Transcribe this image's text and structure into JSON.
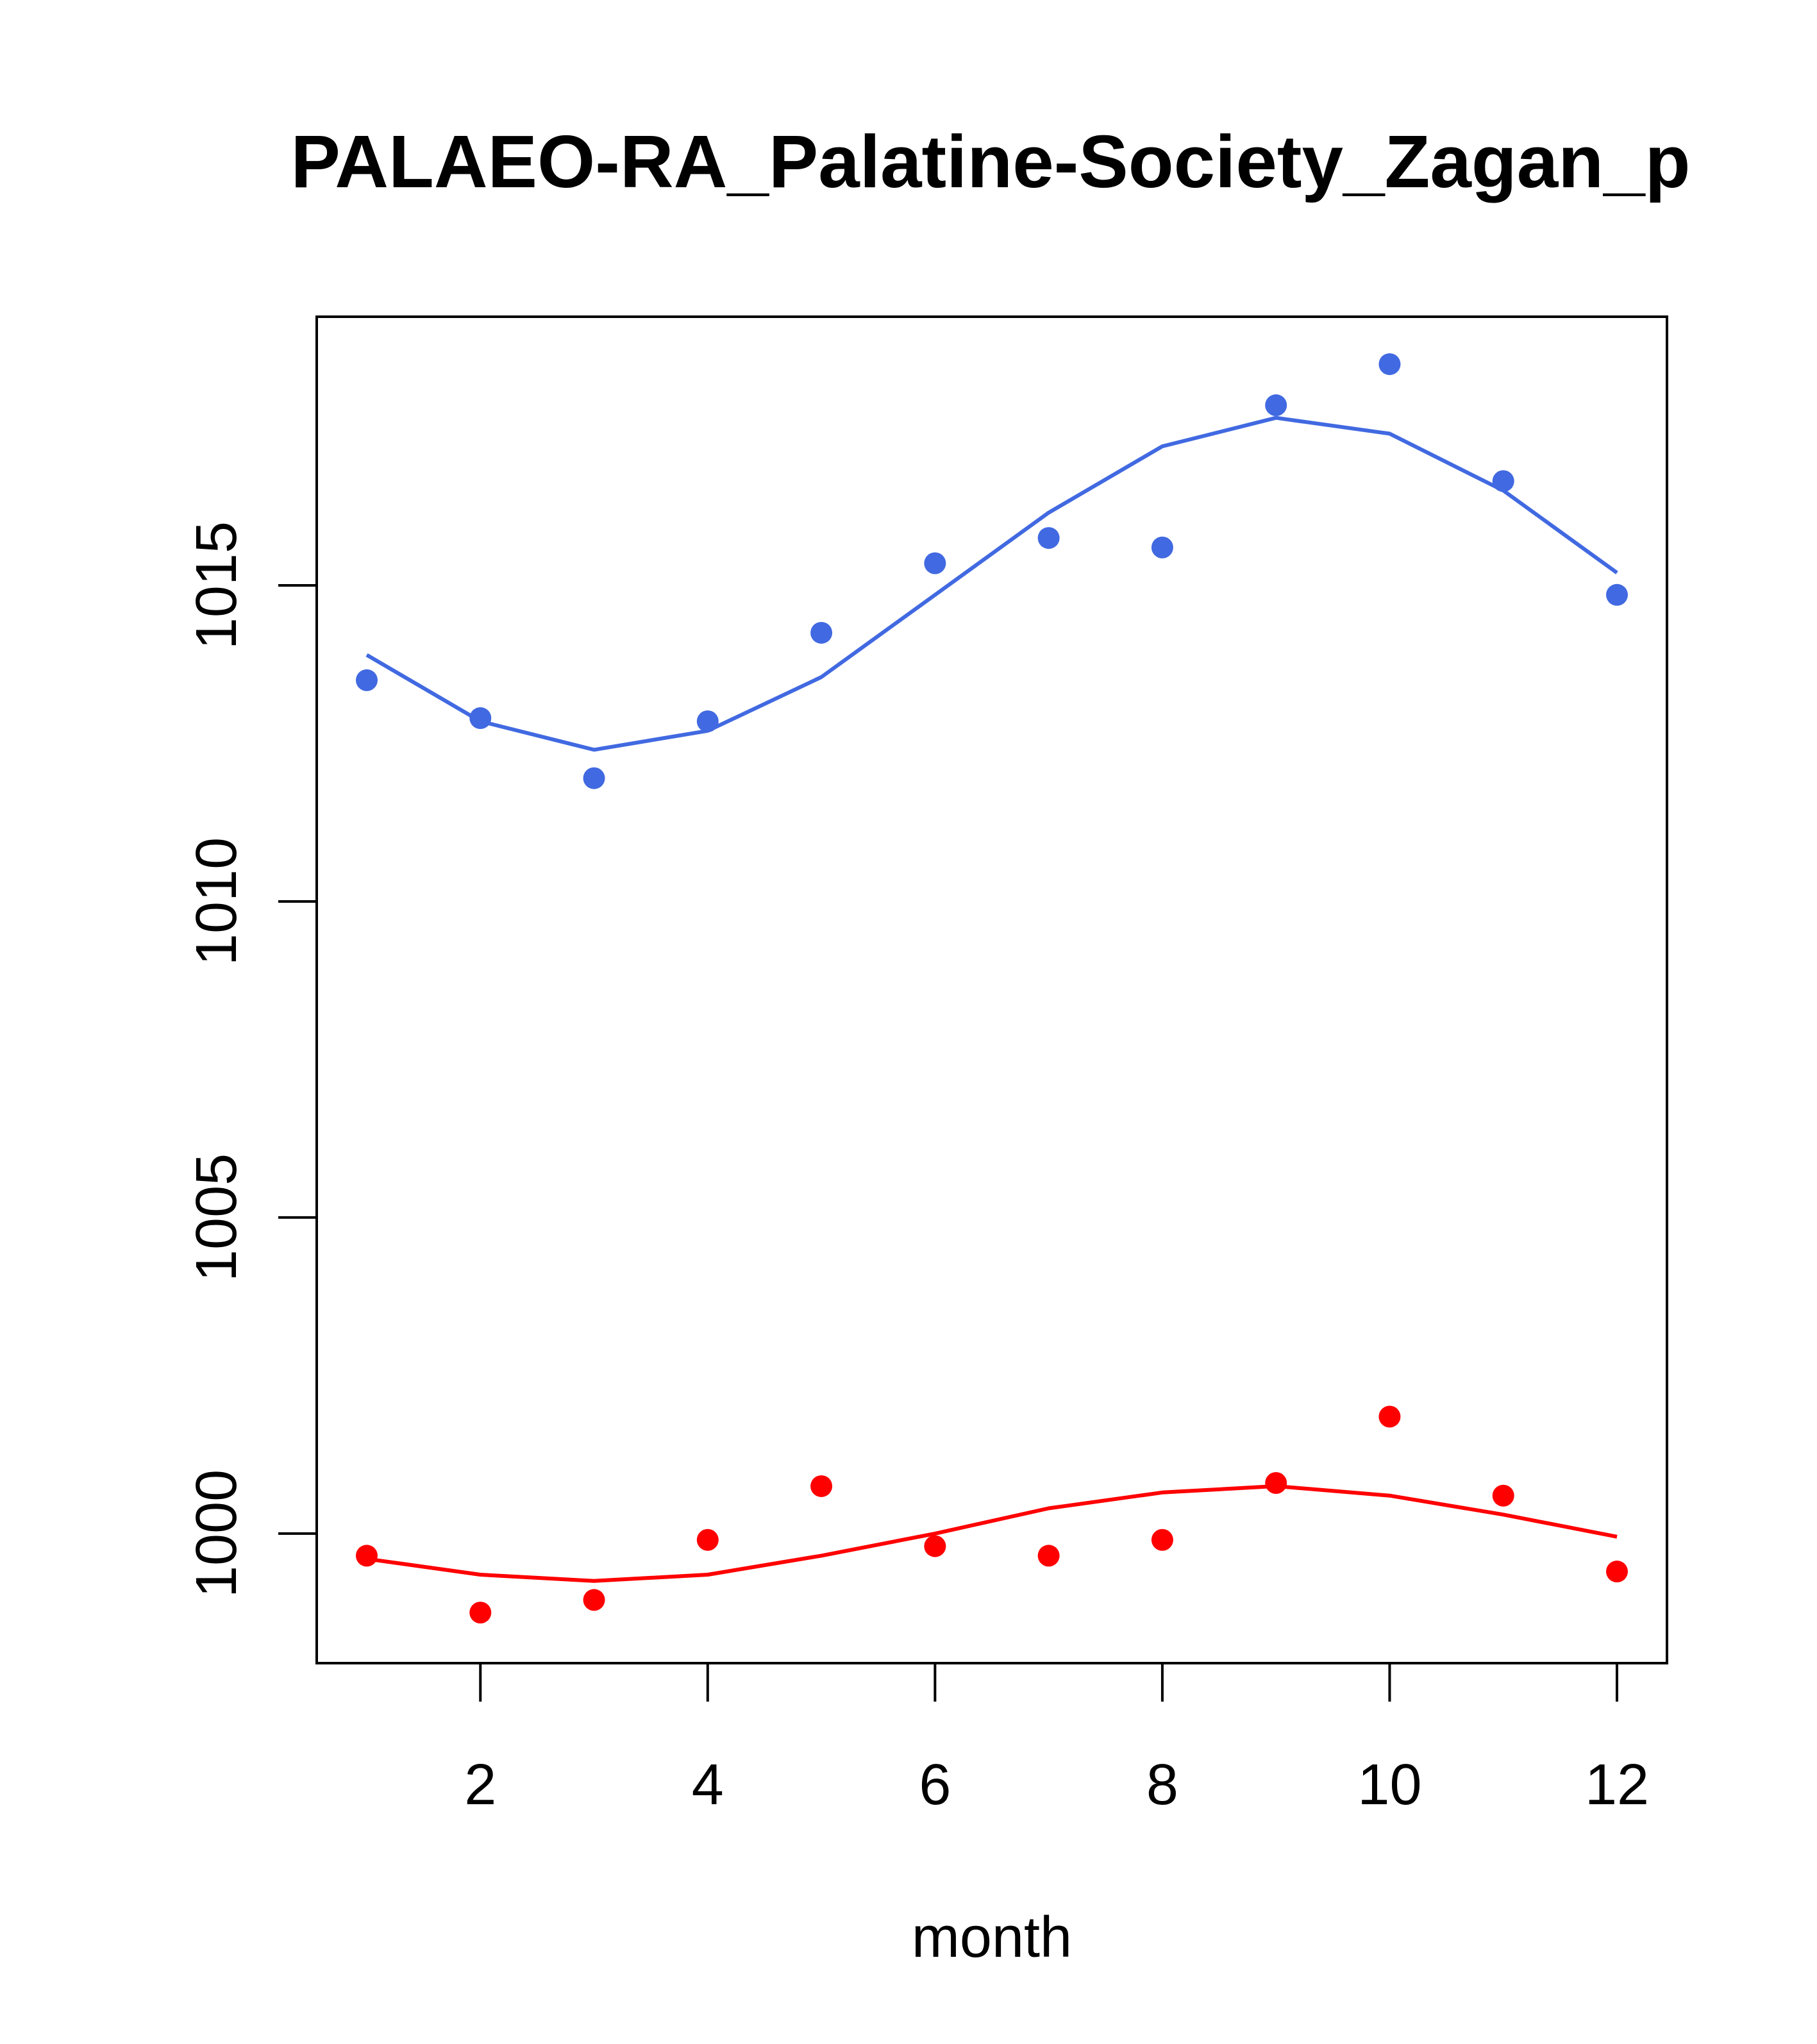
{
  "chart_data": {
    "type": "scatter",
    "title": "PALAEO-RA_Palatine-Society_Zagan_p",
    "xlabel": "month",
    "ylabel": "",
    "xlim": [
      0.56,
      12.44
    ],
    "ylim": [
      997.95,
      1019.25
    ],
    "x_ticks": [
      2,
      4,
      6,
      8,
      10,
      12
    ],
    "y_ticks": [
      1000,
      1005,
      1010,
      1015
    ],
    "grid": false,
    "legend": "none",
    "series": [
      {
        "name": "blue series",
        "color": "#4169E1",
        "x": [
          1,
          2,
          3,
          4,
          5,
          6,
          7,
          8,
          9,
          10,
          11,
          12
        ],
        "points": [
          1013.5,
          1012.9,
          1011.95,
          1012.85,
          1014.25,
          1015.35,
          1015.75,
          1015.6,
          1017.85,
          1018.5,
          1016.65,
          1014.85
        ],
        "smooth": [
          1013.9,
          1012.85,
          1012.4,
          1012.7,
          1013.55,
          1014.85,
          1016.15,
          1017.2,
          1017.65,
          1017.4,
          1016.5,
          1015.2
        ]
      },
      {
        "name": "red series",
        "color": "#FF0000",
        "x": [
          1,
          2,
          3,
          4,
          5,
          6,
          7,
          8,
          9,
          10,
          11,
          12
        ],
        "points": [
          999.65,
          998.75,
          998.95,
          999.9,
          1000.75,
          999.8,
          999.65,
          999.9,
          1000.8,
          1001.85,
          1000.6,
          999.4
        ],
        "smooth": [
          999.6,
          999.35,
          999.25,
          999.35,
          999.65,
          1000.0,
          1000.4,
          1000.65,
          1000.75,
          1000.6,
          1000.3,
          999.95
        ]
      }
    ]
  }
}
